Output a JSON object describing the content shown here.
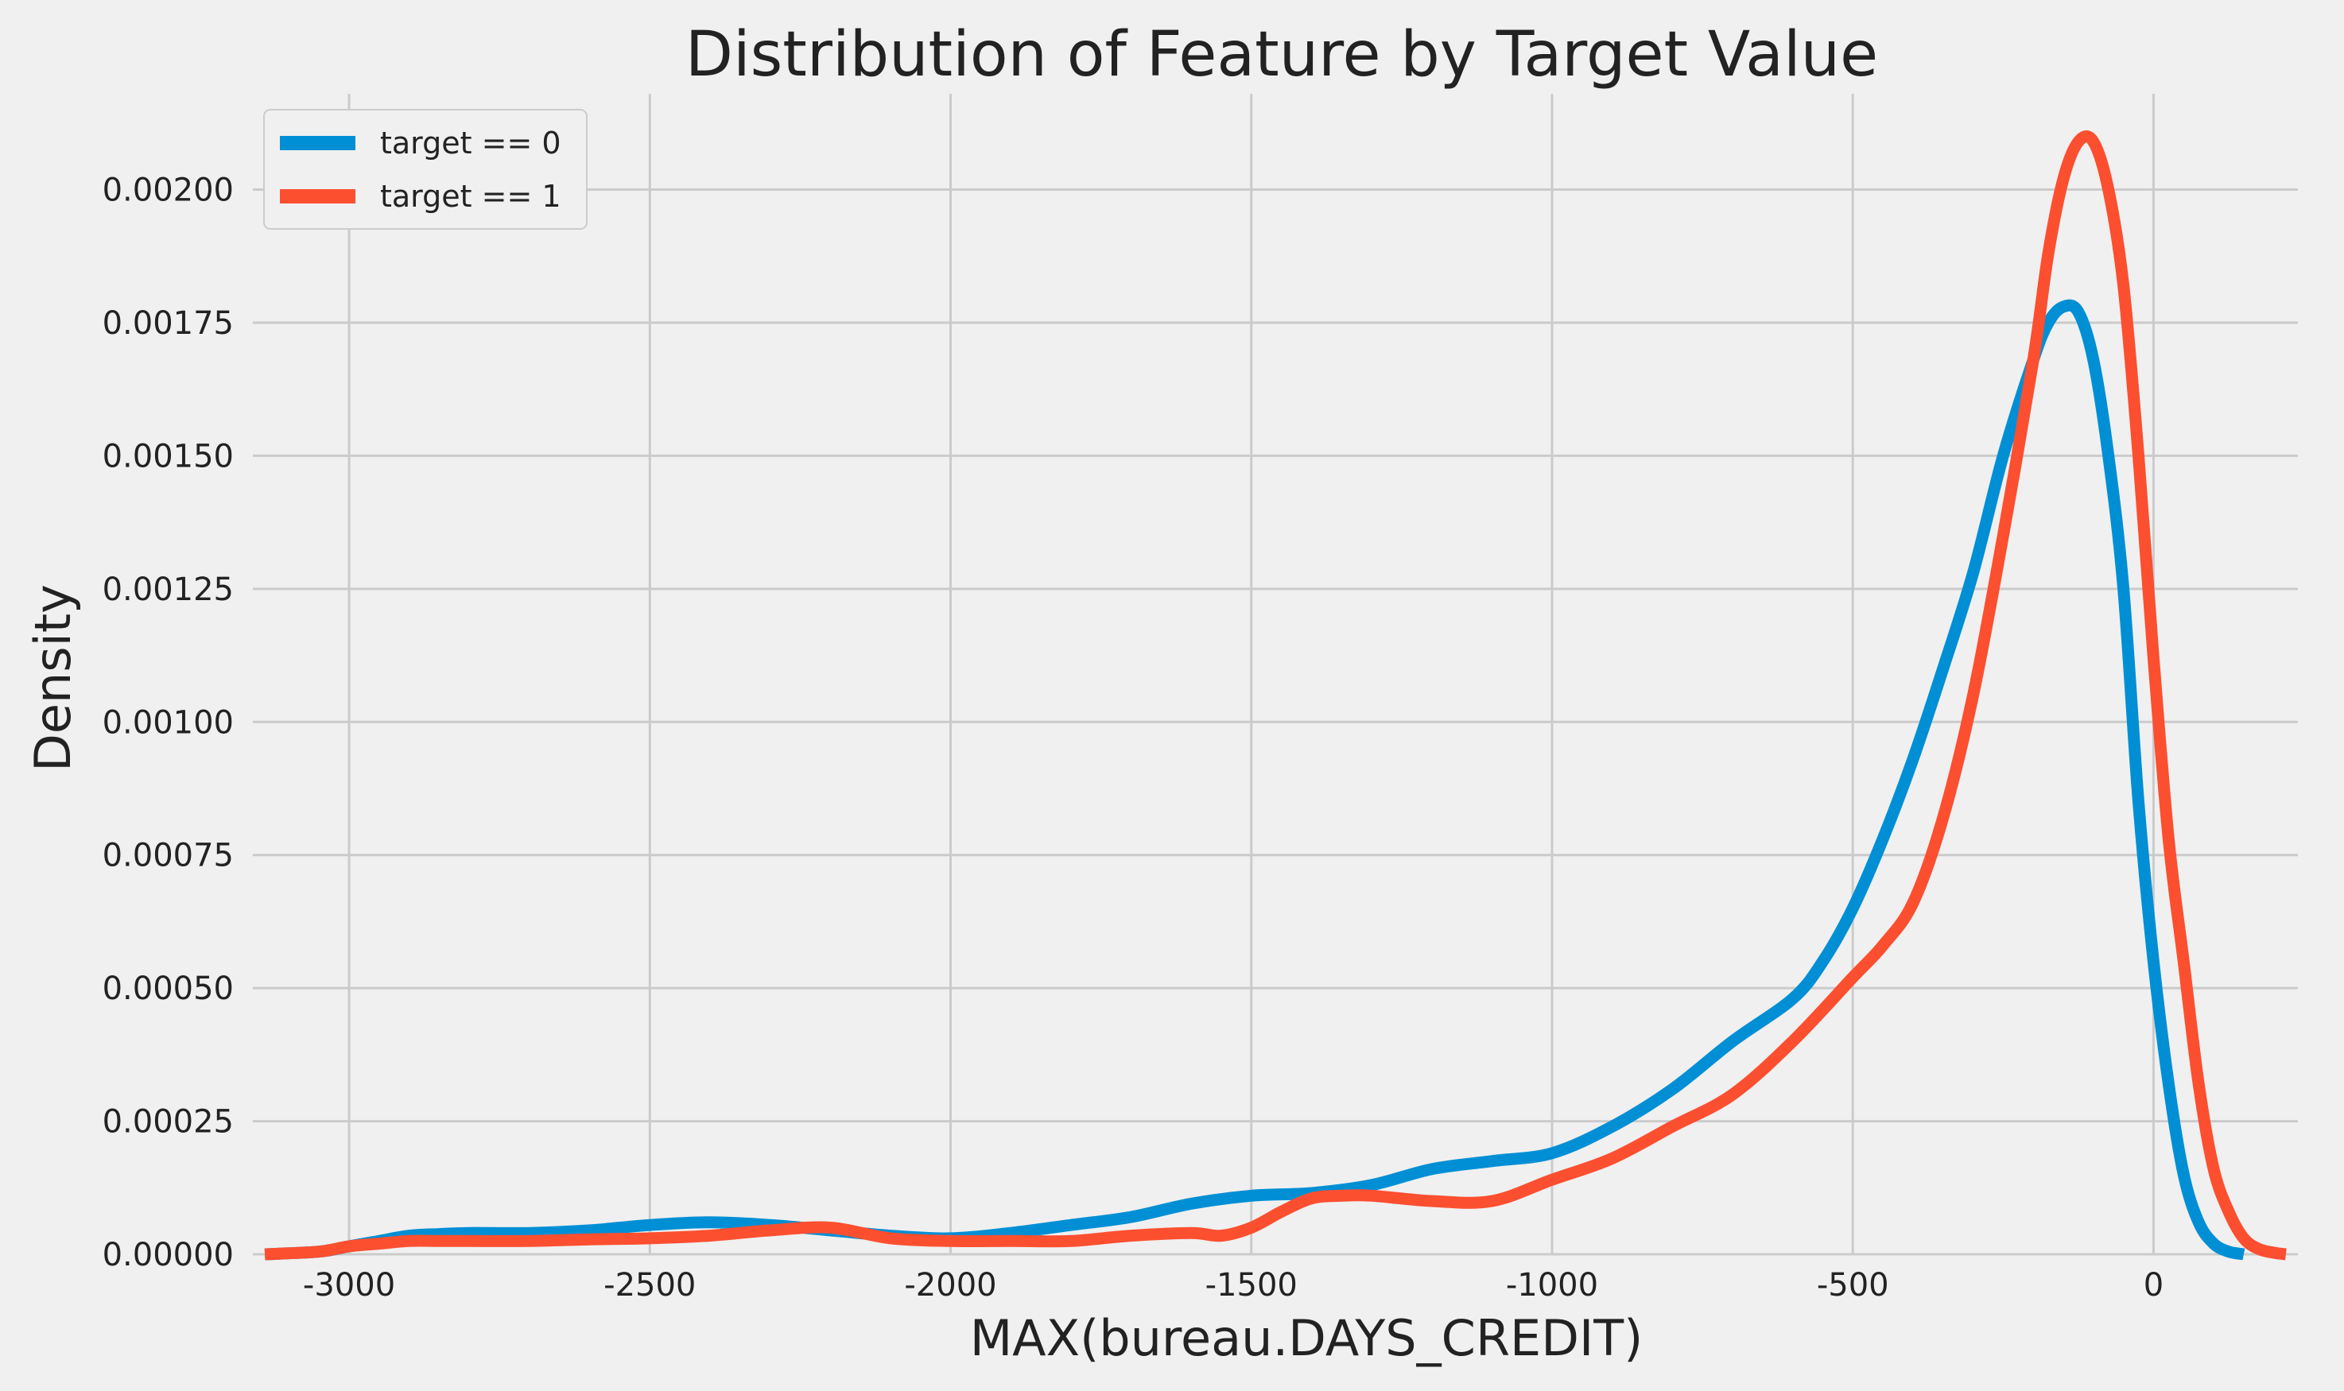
{
  "chart_data": {
    "type": "line",
    "title": "Distribution of Feature by Target Value",
    "xlabel": "MAX(bureau.DAYS_CREDIT)",
    "ylabel": "Density",
    "xlim": [
      -3160,
      240
    ],
    "ylim": [
      0,
      0.00218
    ],
    "xticks": [
      -3000,
      -2500,
      -2000,
      -1500,
      -1000,
      -500,
      0
    ],
    "xtick_labels": [
      "-3000",
      "-2500",
      "-2000",
      "-1500",
      "-1000",
      "-500",
      "0"
    ],
    "yticks": [
      0,
      0.00025,
      0.0005,
      0.00075,
      0.001,
      0.00125,
      0.0015,
      0.00175,
      0.002
    ],
    "ytick_labels": [
      "0.00000",
      "0.00025",
      "0.00050",
      "0.00075",
      "0.00100",
      "0.00125",
      "0.00150",
      "0.00175",
      "0.00200"
    ],
    "grid": true,
    "legend_position": "top-left",
    "series": [
      {
        "name": "target == 0",
        "color": "#008fd5",
        "x": [
          -3140,
          -3050,
          -3000,
          -2950,
          -2900,
          -2850,
          -2800,
          -2700,
          -2600,
          -2500,
          -2400,
          -2300,
          -2200,
          -2100,
          -2000,
          -1900,
          -1800,
          -1700,
          -1600,
          -1500,
          -1400,
          -1300,
          -1200,
          -1100,
          -1000,
          -900,
          -800,
          -700,
          -600,
          -550,
          -500,
          -450,
          -400,
          -350,
          -300,
          -250,
          -200,
          -175,
          -150,
          -125,
          -100,
          -75,
          -50,
          -25,
          0,
          25,
          50,
          75,
          100,
          125,
          150
        ],
        "y": [
          0,
          5e-06,
          1.5e-05,
          2.5e-05,
          3.5e-05,
          3.8e-05,
          4e-05,
          4e-05,
          4.5e-05,
          5.5e-05,
          6e-05,
          5.5e-05,
          4.5e-05,
          3.5e-05,
          3e-05,
          4e-05,
          5.5e-05,
          7e-05,
          9.5e-05,
          0.00011,
          0.000115,
          0.00013,
          0.00016,
          0.000175,
          0.00019,
          0.00024,
          0.00031,
          0.0004,
          0.00048,
          0.00055,
          0.00065,
          0.00078,
          0.00093,
          0.0011,
          0.00128,
          0.0015,
          0.00168,
          0.00175,
          0.00178,
          0.00177,
          0.00168,
          0.0015,
          0.00125,
          0.00085,
          0.00055,
          0.00032,
          0.00015,
          6e-05,
          2e-05,
          5e-06,
          0
        ]
      },
      {
        "name": "target == 1",
        "color": "#fc4f30",
        "x": [
          -3140,
          -3050,
          -3000,
          -2950,
          -2900,
          -2850,
          -2800,
          -2700,
          -2600,
          -2500,
          -2400,
          -2300,
          -2200,
          -2100,
          -2000,
          -1900,
          -1800,
          -1700,
          -1600,
          -1550,
          -1500,
          -1450,
          -1400,
          -1350,
          -1300,
          -1200,
          -1100,
          -1000,
          -900,
          -800,
          -700,
          -600,
          -500,
          -450,
          -400,
          -350,
          -300,
          -250,
          -200,
          -175,
          -150,
          -125,
          -100,
          -75,
          -50,
          -25,
          0,
          25,
          50,
          75,
          100,
          125,
          150,
          175,
          200,
          220
        ],
        "y": [
          0,
          5e-06,
          1.5e-05,
          2e-05,
          2.5e-05,
          2.5e-05,
          2.5e-05,
          2.5e-05,
          2.8e-05,
          3e-05,
          3.5e-05,
          4.5e-05,
          5e-05,
          3e-05,
          2.5e-05,
          2.5e-05,
          2.5e-05,
          3.5e-05,
          4e-05,
          3.5e-05,
          5e-05,
          8e-05,
          0.000105,
          0.00011,
          0.00011,
          0.0001,
          0.0001,
          0.00014,
          0.00018,
          0.00024,
          0.0003,
          0.0004,
          0.00052,
          0.00058,
          0.00066,
          0.00082,
          0.00105,
          0.00135,
          0.00168,
          0.00188,
          0.00202,
          0.00209,
          0.00209,
          0.002,
          0.00182,
          0.0015,
          0.00112,
          0.00078,
          0.00055,
          0.00032,
          0.00016,
          8e-05,
          3e-05,
          1e-05,
          3e-06,
          0
        ]
      }
    ]
  }
}
